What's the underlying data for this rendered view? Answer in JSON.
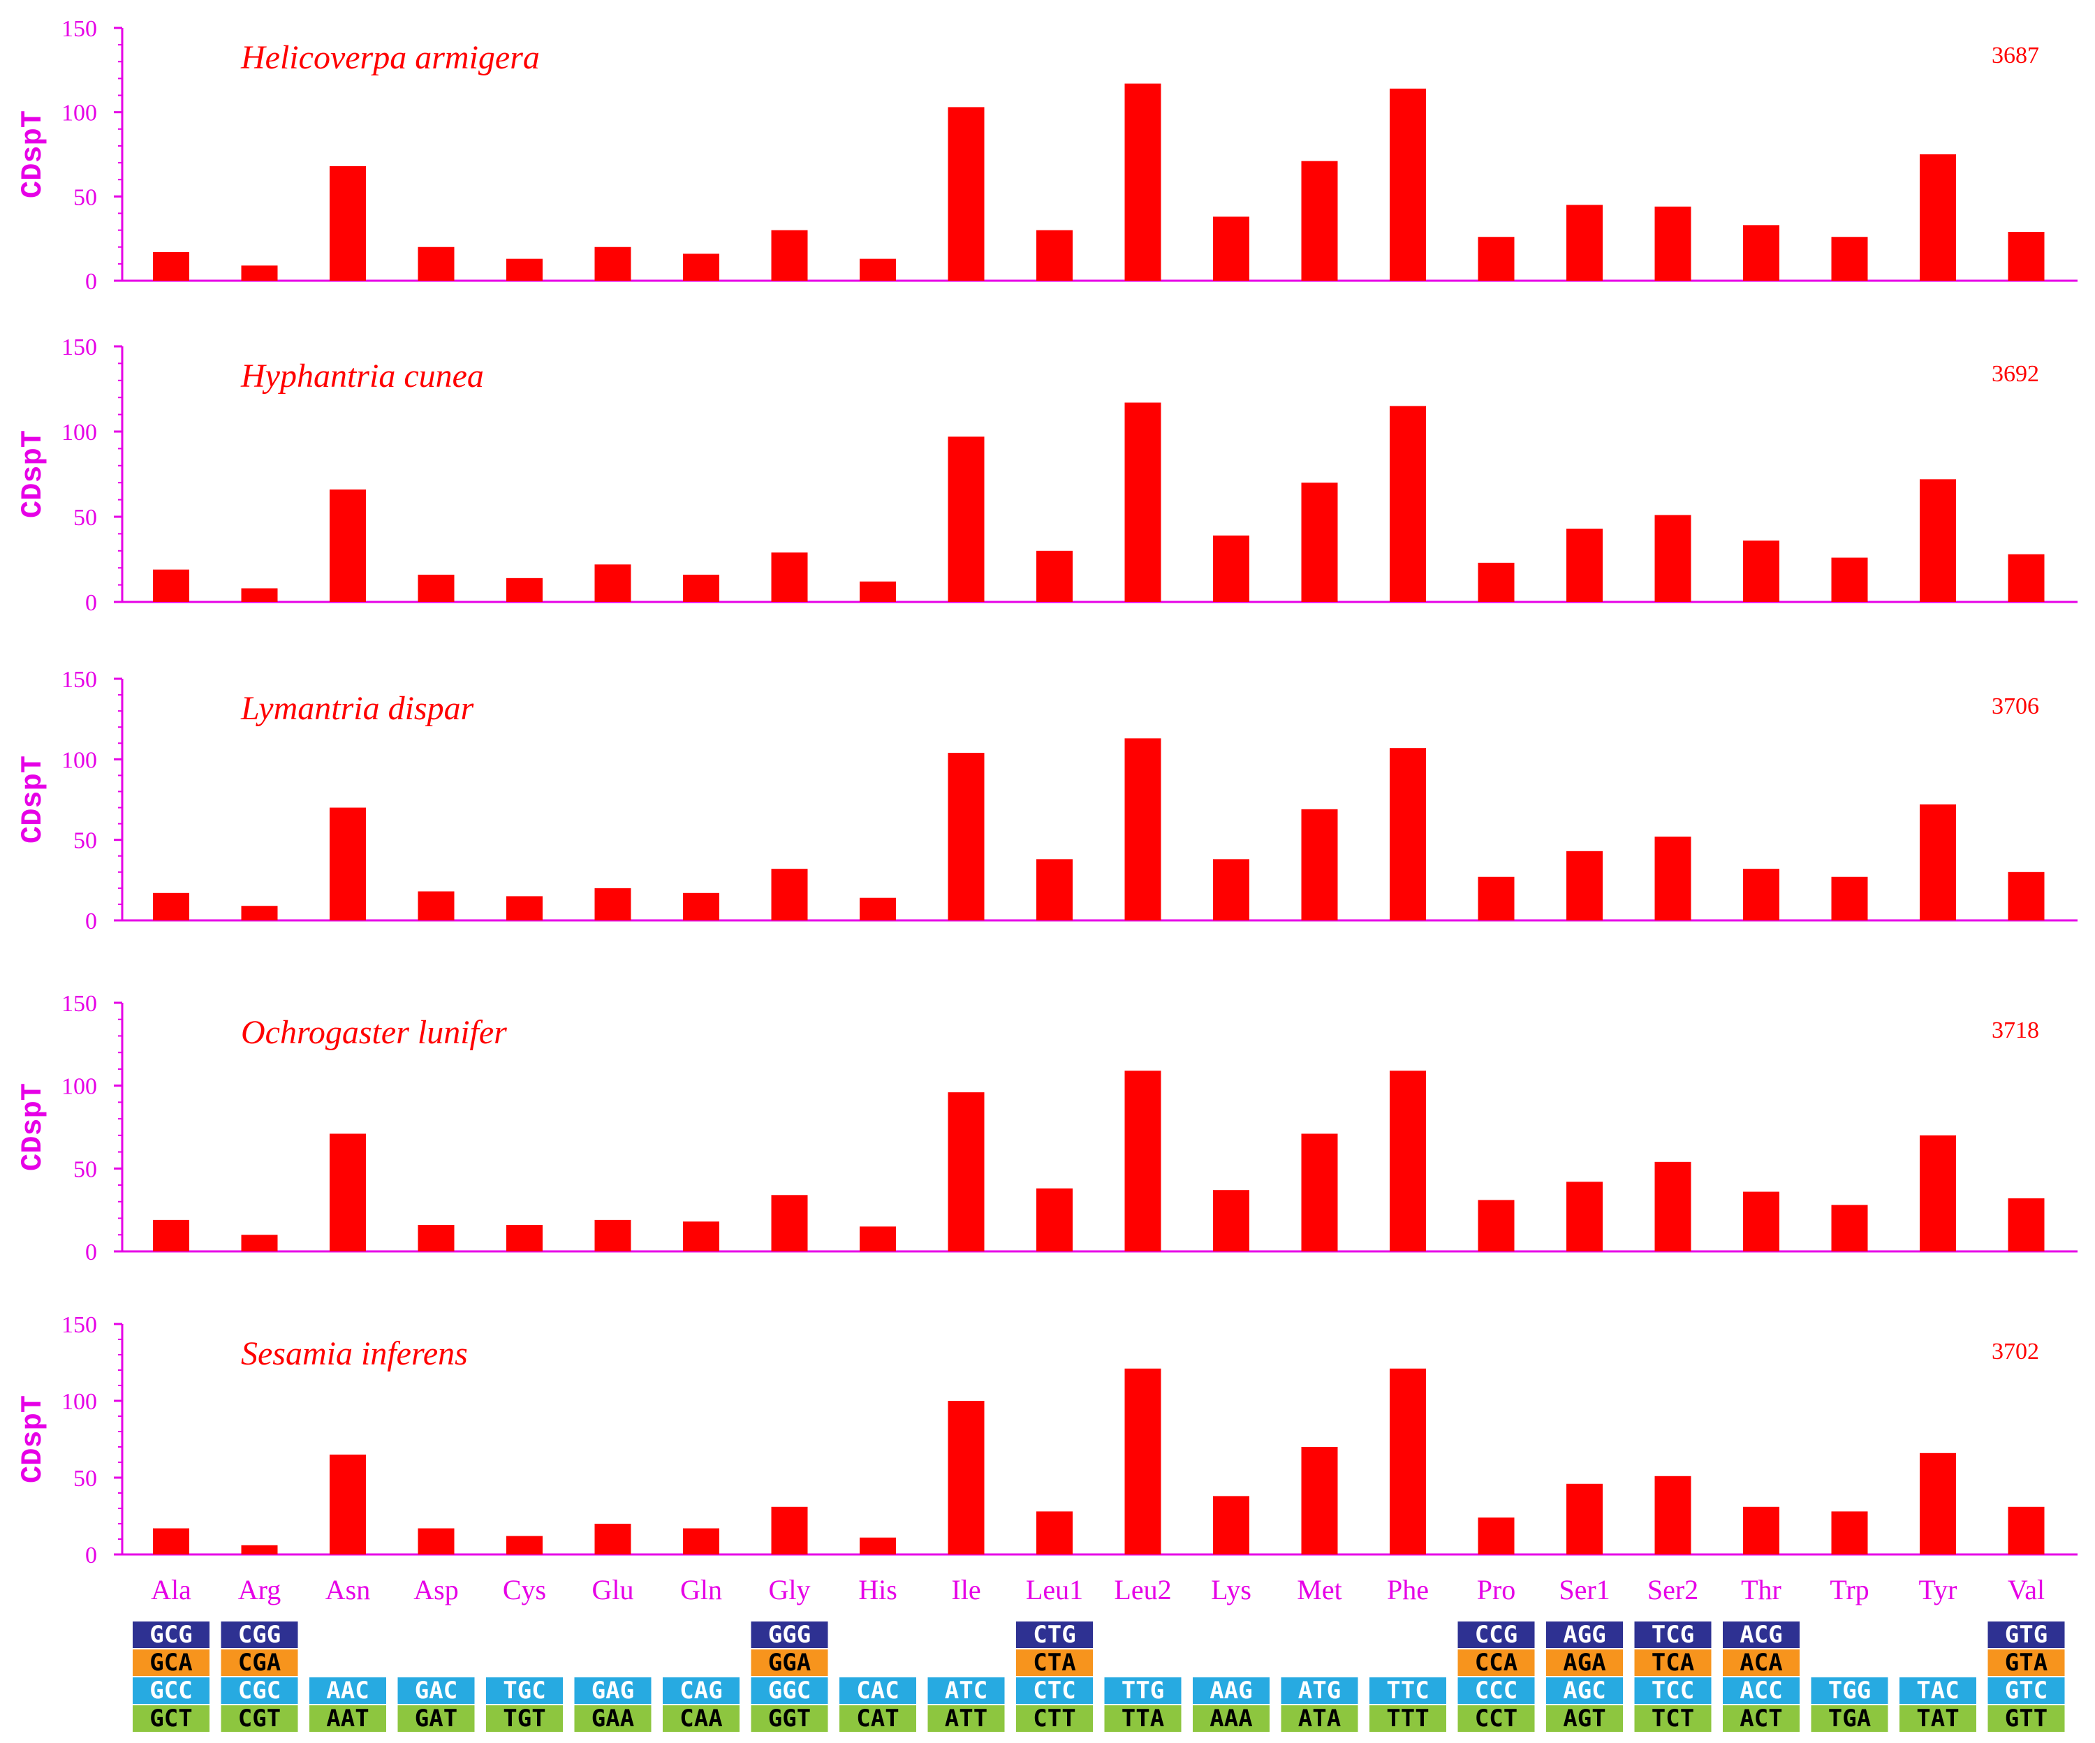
{
  "chart_data": {
    "type": "bar",
    "ylabel": "CDspT",
    "ylim": [
      0,
      150
    ],
    "yticks": [
      0,
      50,
      100,
      150
    ],
    "categories": [
      "Ala",
      "Arg",
      "Asn",
      "Asp",
      "Cys",
      "Glu",
      "Gln",
      "Gly",
      "His",
      "Ile",
      "Leu1",
      "Leu2",
      "Lys",
      "Met",
      "Phe",
      "Pro",
      "Ser1",
      "Ser2",
      "Thr",
      "Trp",
      "Tyr",
      "Val"
    ],
    "bar_color": "#ff0000",
    "axis_color": "#e600e6",
    "panels": [
      {
        "name": "Helicoverpa armigera",
        "count": "3687",
        "values": [
          17,
          9,
          68,
          20,
          13,
          20,
          16,
          30,
          13,
          103,
          30,
          117,
          38,
          71,
          114,
          26,
          45,
          44,
          33,
          26,
          75,
          29
        ]
      },
      {
        "name": "Hyphantria cunea",
        "count": "3692",
        "values": [
          19,
          8,
          66,
          16,
          14,
          22,
          16,
          29,
          12,
          97,
          30,
          117,
          39,
          70,
          115,
          23,
          43,
          51,
          36,
          26,
          72,
          28
        ]
      },
      {
        "name": "Lymantria dispar",
        "count": "3706",
        "values": [
          17,
          9,
          70,
          18,
          15,
          20,
          17,
          32,
          14,
          104,
          38,
          113,
          38,
          69,
          107,
          27,
          43,
          52,
          32,
          27,
          72,
          30
        ]
      },
      {
        "name": "Ochrogaster lunifer",
        "count": "3718",
        "values": [
          19,
          10,
          71,
          16,
          16,
          19,
          18,
          34,
          15,
          96,
          38,
          109,
          37,
          71,
          109,
          31,
          42,
          54,
          36,
          28,
          70,
          32
        ]
      },
      {
        "name": "Sesamia inferens",
        "count": "3702",
        "values": [
          17,
          6,
          65,
          17,
          12,
          20,
          17,
          31,
          11,
          100,
          28,
          121,
          38,
          70,
          121,
          24,
          46,
          51,
          31,
          28,
          66,
          31
        ]
      }
    ],
    "codon_colors": {
      "row1": "#2e3192",
      "row2": "#f7941d",
      "row3": "#27aae1",
      "row4": "#8dc63f"
    },
    "codons": [
      [
        "GCG",
        "GCA",
        "GCC",
        "GCT"
      ],
      [
        "CGG",
        "CGA",
        "CGC",
        "CGT"
      ],
      [
        "",
        "",
        "AAC",
        "AAT"
      ],
      [
        "",
        "",
        "GAC",
        "GAT"
      ],
      [
        "",
        "",
        "TGC",
        "TGT"
      ],
      [
        "",
        "",
        "GAG",
        "GAA"
      ],
      [
        "",
        "",
        "CAG",
        "CAA"
      ],
      [
        "GGG",
        "GGA",
        "GGC",
        "GGT"
      ],
      [
        "",
        "",
        "CAC",
        "CAT"
      ],
      [
        "",
        "",
        "ATC",
        "ATT"
      ],
      [
        "CTG",
        "CTA",
        "CTC",
        "CTT"
      ],
      [
        "",
        "",
        "TTG",
        "TTA"
      ],
      [
        "",
        "",
        "AAG",
        "AAA"
      ],
      [
        "",
        "",
        "ATG",
        "ATA"
      ],
      [
        "",
        "",
        "TTC",
        "TTT"
      ],
      [
        "CCG",
        "CCA",
        "CCC",
        "CCT"
      ],
      [
        "AGG",
        "AGA",
        "AGC",
        "AGT"
      ],
      [
        "TCG",
        "TCA",
        "TCC",
        "TCT"
      ],
      [
        "ACG",
        "ACA",
        "ACC",
        "ACT"
      ],
      [
        "",
        "",
        "TGG",
        "TGA"
      ],
      [
        "",
        "",
        "TAC",
        "TAT"
      ],
      [
        "GTG",
        "GTA",
        "GTC",
        "GTT"
      ]
    ]
  }
}
